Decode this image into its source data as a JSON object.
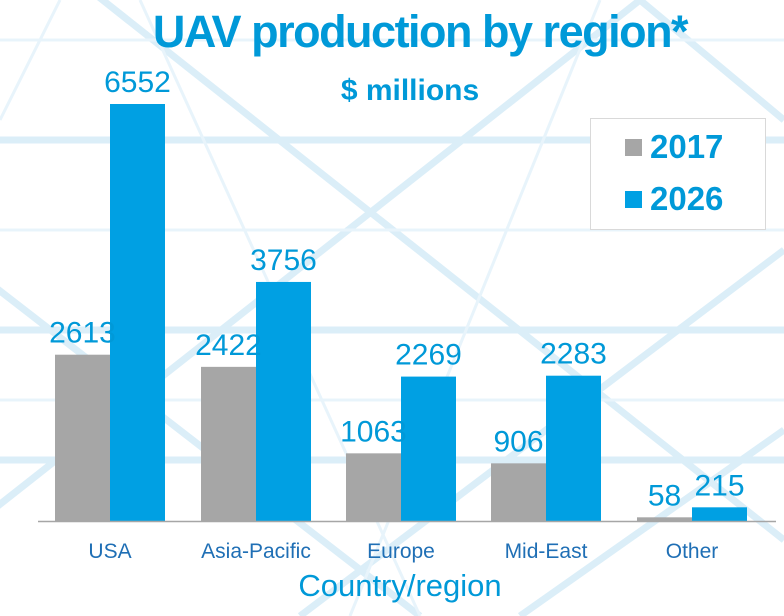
{
  "colors": {
    "accent": "#0099d8",
    "series_2017": "#a6a6a6",
    "series_2026": "#00a0e3",
    "axis": "#a6a6a6",
    "category_text": "#1f6fb5"
  },
  "chart_data": {
    "type": "bar",
    "title": "UAV production by region*",
    "subtitle": "$ millions",
    "xlabel": "Country/region",
    "ylabel": "",
    "categories": [
      "USA",
      "Asia-Pacific",
      "Europe",
      "Mid-East",
      "Other"
    ],
    "series": [
      {
        "name": "2017",
        "values": [
          2613,
          2422,
          1063,
          906,
          58
        ]
      },
      {
        "name": "2026",
        "values": [
          6552,
          3756,
          2269,
          2283,
          215
        ]
      }
    ],
    "ylim": [
      0,
      7000
    ],
    "grid": false,
    "legend_position": "top-right",
    "data_labels": true
  }
}
